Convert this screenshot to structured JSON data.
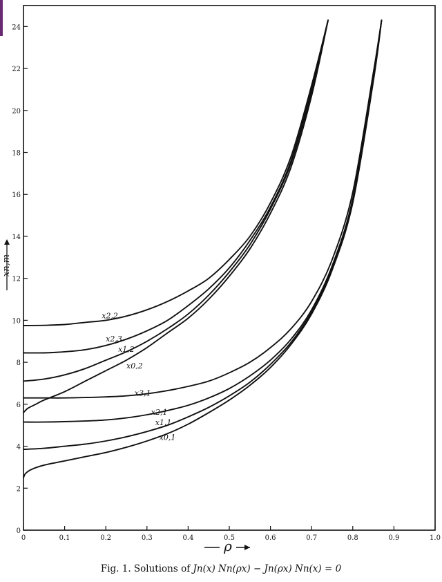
{
  "chart_data": {
    "type": "line",
    "title": "",
    "xlabel": "ρ",
    "ylabel": "xn,m",
    "xlim": [
      0,
      1.0
    ],
    "ylim": [
      0,
      25
    ],
    "x_ticks": [
      "0",
      "0.1",
      "0.2",
      "0.3",
      "0.4",
      "0.5",
      "0.6",
      "0.7",
      "0.8",
      "0.9",
      "1.0"
    ],
    "y_ticks": [
      "0",
      "2",
      "4",
      "6",
      "8",
      "10",
      "12",
      "14",
      "16",
      "18",
      "20",
      "22",
      "24"
    ],
    "grid": false,
    "legend": "none",
    "series": [
      {
        "name": "x2,2",
        "x": [
          0,
          0.05,
          0.1,
          0.15,
          0.2,
          0.25,
          0.3,
          0.35,
          0.4,
          0.45,
          0.5,
          0.55,
          0.6,
          0.65,
          0.7,
          0.74
        ],
        "y": [
          9.75,
          9.76,
          9.8,
          9.9,
          10.0,
          10.2,
          10.5,
          10.9,
          11.4,
          12.0,
          12.9,
          14.0,
          15.6,
          17.8,
          21.2,
          24.3
        ]
      },
      {
        "name": "x2,3",
        "x": [
          0,
          0.05,
          0.1,
          0.15,
          0.2,
          0.25,
          0.3,
          0.35,
          0.4,
          0.45,
          0.5,
          0.55,
          0.6,
          0.65,
          0.7,
          0.74
        ],
        "y": [
          8.45,
          8.45,
          8.5,
          8.6,
          8.8,
          9.1,
          9.5,
          10.0,
          10.7,
          11.5,
          12.5,
          13.8,
          15.4,
          17.6,
          21.0,
          24.3
        ]
      },
      {
        "name": "x1,2",
        "x": [
          0,
          0.05,
          0.1,
          0.15,
          0.2,
          0.25,
          0.3,
          0.35,
          0.4,
          0.45,
          0.5,
          0.55,
          0.6,
          0.65,
          0.7,
          0.74
        ],
        "y": [
          7.1,
          7.2,
          7.4,
          7.7,
          8.1,
          8.5,
          9.0,
          9.6,
          10.3,
          11.2,
          12.3,
          13.6,
          15.3,
          17.5,
          20.9,
          24.3
        ]
      },
      {
        "name": "x0,2",
        "x": [
          0,
          0.01,
          0.03,
          0.05,
          0.1,
          0.15,
          0.2,
          0.25,
          0.3,
          0.35,
          0.4,
          0.45,
          0.5,
          0.55,
          0.6,
          0.65,
          0.7,
          0.74
        ],
        "y": [
          5.6,
          5.8,
          6.0,
          6.2,
          6.6,
          7.1,
          7.6,
          8.1,
          8.7,
          9.4,
          10.1,
          11.0,
          12.1,
          13.4,
          15.1,
          17.3,
          20.7,
          24.3
        ]
      },
      {
        "name": "x3,1",
        "x": [
          0,
          0.05,
          0.1,
          0.15,
          0.2,
          0.25,
          0.3,
          0.35,
          0.4,
          0.45,
          0.5,
          0.55,
          0.6,
          0.65,
          0.7,
          0.75,
          0.8,
          0.85,
          0.87
        ],
        "y": [
          6.3,
          6.3,
          6.3,
          6.32,
          6.35,
          6.4,
          6.5,
          6.65,
          6.85,
          7.1,
          7.5,
          8.0,
          8.7,
          9.6,
          10.9,
          12.9,
          16.1,
          21.8,
          24.3
        ]
      },
      {
        "name": "x2,1",
        "x": [
          0,
          0.05,
          0.1,
          0.15,
          0.2,
          0.25,
          0.3,
          0.35,
          0.4,
          0.45,
          0.5,
          0.55,
          0.6,
          0.65,
          0.7,
          0.75,
          0.8,
          0.85,
          0.87
        ],
        "y": [
          5.15,
          5.15,
          5.17,
          5.2,
          5.25,
          5.35,
          5.5,
          5.7,
          5.95,
          6.3,
          6.75,
          7.35,
          8.1,
          9.1,
          10.5,
          12.6,
          15.8,
          21.6,
          24.3
        ]
      },
      {
        "name": "x1,1",
        "x": [
          0,
          0.05,
          0.1,
          0.15,
          0.2,
          0.25,
          0.3,
          0.35,
          0.4,
          0.45,
          0.5,
          0.55,
          0.6,
          0.65,
          0.7,
          0.75,
          0.8,
          0.85,
          0.87
        ],
        "y": [
          3.85,
          3.9,
          4.0,
          4.1,
          4.25,
          4.45,
          4.7,
          5.0,
          5.4,
          5.85,
          6.4,
          7.05,
          7.9,
          8.95,
          10.4,
          12.5,
          15.7,
          21.5,
          24.3
        ]
      },
      {
        "name": "x0,1",
        "x": [
          0,
          0.005,
          0.02,
          0.05,
          0.1,
          0.15,
          0.2,
          0.25,
          0.3,
          0.35,
          0.4,
          0.45,
          0.5,
          0.55,
          0.6,
          0.65,
          0.7,
          0.75,
          0.8,
          0.85,
          0.87
        ],
        "y": [
          2.5,
          2.7,
          2.9,
          3.1,
          3.3,
          3.5,
          3.7,
          3.95,
          4.25,
          4.6,
          5.05,
          5.6,
          6.2,
          6.9,
          7.75,
          8.85,
          10.3,
          12.4,
          15.6,
          21.4,
          24.3
        ]
      }
    ],
    "curve_labels": [
      {
        "text": "x2,2",
        "x": 0.19,
        "y": 10.1
      },
      {
        "text": "x2,3",
        "x": 0.2,
        "y": 9.0
      },
      {
        "text": "x1,2",
        "x": 0.23,
        "y": 8.5
      },
      {
        "text": "x0,2",
        "x": 0.25,
        "y": 7.7
      },
      {
        "text": "x3,1",
        "x": 0.27,
        "y": 6.4
      },
      {
        "text": "x2,1",
        "x": 0.31,
        "y": 5.5
      },
      {
        "text": "x1,1",
        "x": 0.32,
        "y": 5.0
      },
      {
        "text": "x0,1",
        "x": 0.33,
        "y": 4.3
      }
    ]
  },
  "caption": {
    "prefix": "Fig. 1. Solutions of",
    "equation": "Jn(x) Nn(ρx) − Jn(ρx) Nn(x) = 0"
  }
}
